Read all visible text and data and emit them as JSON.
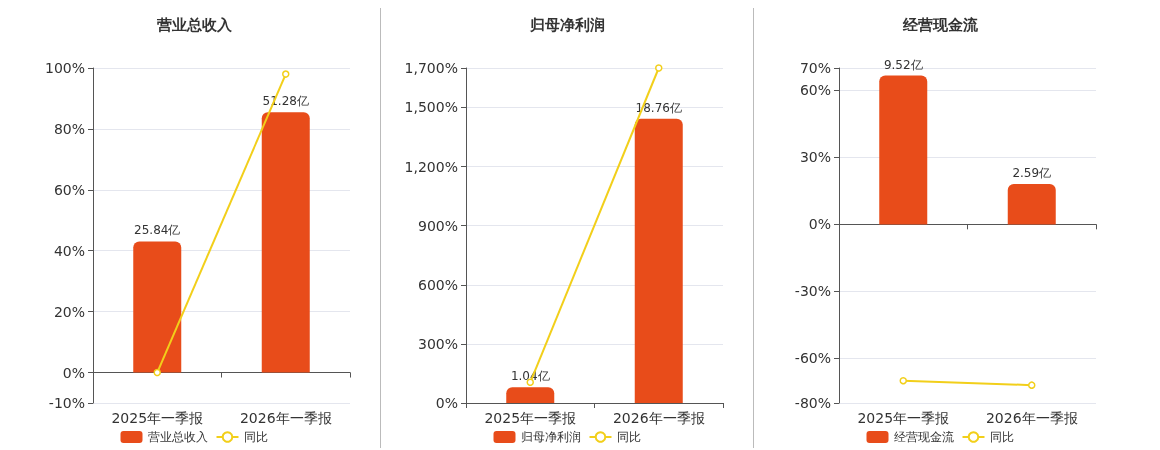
{
  "chart_data": [
    {
      "type": "bar",
      "title": "营业总收入",
      "categories": [
        "2025年一季报",
        "2026年一季报"
      ],
      "ylim": [
        -10,
        100
      ],
      "yticks": [
        {
          "value": -10,
          "label": "-10%"
        },
        {
          "value": 0,
          "label": "0%"
        },
        {
          "value": 20,
          "label": "20%"
        },
        {
          "value": 40,
          "label": "40%"
        },
        {
          "value": 60,
          "label": "60%"
        },
        {
          "value": 80,
          "label": "80%"
        },
        {
          "value": 100,
          "label": "100%"
        }
      ],
      "y2lim": [
        -6,
        60
      ],
      "grid": "y",
      "legend": "bottom",
      "marker": "circle",
      "series": [
        {
          "name": "营业总收入",
          "axis": "y2",
          "color": "#e84c1a",
          "values": [
            25.84,
            51.28
          ],
          "value_labels": [
            "25.84亿",
            "51.28亿"
          ]
        },
        {
          "name": "同比",
          "type": "line",
          "color": "#f2cf1a",
          "values": [
            0,
            98
          ]
        }
      ]
    },
    {
      "type": "bar",
      "title": "归母净利润",
      "categories": [
        "2025年一季报",
        "2026年一季报"
      ],
      "ylim": [
        0,
        1700
      ],
      "yticks": [
        {
          "value": 0,
          "label": "0%"
        },
        {
          "value": 300,
          "label": "300%"
        },
        {
          "value": 600,
          "label": "600%"
        },
        {
          "value": 900,
          "label": "900%"
        },
        {
          "value": 1200,
          "label": "1,200%"
        },
        {
          "value": 1500,
          "label": "1,500%"
        },
        {
          "value": 1700,
          "label": "1,700%"
        }
      ],
      "y2lim": [
        0,
        22.1
      ],
      "grid": "y",
      "legend": "bottom",
      "marker": "circle",
      "series": [
        {
          "name": "归母净利润",
          "axis": "y2",
          "color": "#e84c1a",
          "values": [
            1.04,
            18.76
          ],
          "value_labels": [
            "1.04亿",
            "18.76亿"
          ]
        },
        {
          "name": "同比",
          "type": "line",
          "color": "#f2cf1a",
          "values": [
            105,
            1700
          ]
        }
      ]
    },
    {
      "type": "bar",
      "title": "经营现金流",
      "categories": [
        "2025年一季报",
        "2026年一季报"
      ],
      "ylim": [
        -80,
        70
      ],
      "yticks": [
        {
          "value": -80,
          "label": "-80%"
        },
        {
          "value": -60,
          "label": "-60%"
        },
        {
          "value": -30,
          "label": "-30%"
        },
        {
          "value": 0,
          "label": "0%"
        },
        {
          "value": 30,
          "label": "30%"
        },
        {
          "value": 60,
          "label": "60%"
        },
        {
          "value": 70,
          "label": "70%"
        }
      ],
      "y2lim": [
        -11.4,
        10
      ],
      "grid": "y",
      "legend": "bottom",
      "marker": "circle",
      "series": [
        {
          "name": "经营现金流",
          "axis": "y2",
          "color": "#e84c1a",
          "values": [
            9.52,
            2.59
          ],
          "value_labels": [
            "9.52亿",
            "2.59亿"
          ]
        },
        {
          "name": "同比",
          "type": "line",
          "color": "#f2cf1a",
          "values": [
            -70,
            -72
          ]
        }
      ]
    }
  ]
}
